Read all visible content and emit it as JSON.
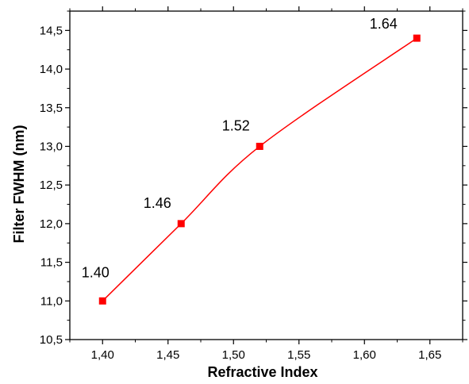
{
  "chart_data": {
    "type": "line",
    "title": "",
    "xlabel": "Refractive Index",
    "ylabel": "Filter FWHM (nm)",
    "xlim": [
      1.375,
      1.675
    ],
    "ylim": [
      10.5,
      14.75
    ],
    "x_ticks": [
      "1,40",
      "1,45",
      "1,50",
      "1,55",
      "1,60",
      "1,65"
    ],
    "x_tick_values": [
      1.4,
      1.45,
      1.5,
      1.55,
      1.6,
      1.65
    ],
    "y_ticks": [
      "10,5",
      "11,0",
      "11,5",
      "12,0",
      "12,5",
      "13,0",
      "13,5",
      "14,0",
      "14,5"
    ],
    "y_tick_values": [
      10.5,
      11.0,
      11.5,
      12.0,
      12.5,
      13.0,
      13.5,
      14.0,
      14.5
    ],
    "grid": false,
    "legend": "none",
    "series": [
      {
        "color": "#ff0000",
        "marker": "square",
        "smooth": true,
        "x": [
          1.4,
          1.46,
          1.52,
          1.64
        ],
        "y": [
          11.0,
          12.0,
          13.0,
          14.4
        ],
        "point_labels": [
          "1.40",
          "1.46",
          "1.52",
          "1.64"
        ]
      }
    ]
  }
}
